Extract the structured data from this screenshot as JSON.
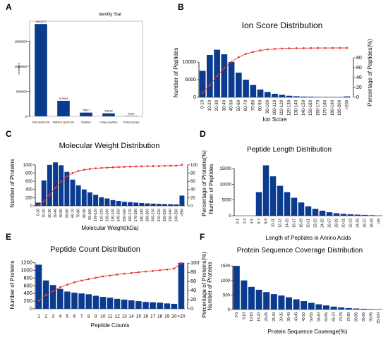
{
  "colors": {
    "bar": "#0b3b8f",
    "cumulative": "#e8322e",
    "axis": "#000000",
    "frame": "#999999"
  },
  "panels": [
    {
      "letter": "A",
      "title": "Identity Stat",
      "type": "bar",
      "ylabel": "Numbers",
      "xlabel": "",
      "categories": [
        "Total spectrums",
        "Matched spectrums",
        "Peptides",
        "Unique peptides",
        "Protein groups"
      ],
      "values": [
        1841377,
        310004,
        75017,
        59818,
        6326
      ],
      "value_labels": [
        "1841377",
        "310004",
        "75017",
        "59818",
        "6326"
      ],
      "ylim": [
        0,
        1900000
      ],
      "yticks": [
        0,
        500000,
        1000000,
        1500000
      ],
      "ytick_labels": [
        "0",
        "500000",
        "1000000",
        "1500000"
      ]
    },
    {
      "letter": "B",
      "title": "Ion Score Distribution",
      "type": "bar+line",
      "ylabel": "Number of Peptides",
      "ylabel2": "Percentage of Peptides(%)",
      "xlabel": "Ion Score",
      "categories": [
        "0-10",
        "10-20",
        "20-30",
        "30-40",
        "40-50",
        "50-60",
        "60-70",
        "70-80",
        "80-90",
        "90-100",
        "100-110",
        "110-120",
        "120-130",
        "130-140",
        "140-150",
        "150-160",
        "160-170",
        "170-180",
        "180-190",
        "190-200",
        ">200"
      ],
      "values": [
        7500,
        12000,
        13500,
        12200,
        10000,
        7000,
        5000,
        3500,
        2200,
        1500,
        1000,
        700,
        450,
        300,
        200,
        150,
        100,
        80,
        60,
        40,
        250
      ],
      "cumulative": [
        9,
        25,
        43,
        59,
        72,
        81,
        88,
        92,
        95,
        97,
        98,
        98.8,
        99.2,
        99.5,
        99.6,
        99.7,
        99.8,
        99.85,
        99.9,
        99.95,
        100
      ],
      "ylim": [
        0,
        14000
      ],
      "yticks": [
        0,
        5000,
        10000
      ],
      "ytick_labels": [
        "0",
        "5000",
        "10000"
      ],
      "ylim2": [
        0,
        100
      ],
      "yticks2": [
        0,
        20,
        40,
        60,
        80
      ],
      "ytick2_labels": [
        "0",
        "20",
        "40",
        "60",
        "80"
      ]
    },
    {
      "letter": "C",
      "title": "Molecular Weight Distribution",
      "type": "bar+line",
      "ylabel": "Number of Proteins",
      "ylabel2": "Percentage of Proteins(%)",
      "xlabel": "Molecular Weight(kDa)",
      "categories": [
        "0-10",
        "10-20",
        "20-30",
        "30-40",
        "40-50",
        "50-60",
        "60-70",
        "70-80",
        "80-90",
        "90-100",
        "100-110",
        "110-120",
        "120-130",
        "130-140",
        "140-150",
        "150-160",
        "160-170",
        "170-180",
        "180-190",
        "190-200",
        "200-210",
        "210-220",
        "220-230",
        "230-240",
        "240-250",
        ">250"
      ],
      "values": [
        80,
        620,
        1000,
        1060,
        990,
        830,
        640,
        500,
        400,
        330,
        270,
        210,
        180,
        140,
        120,
        100,
        90,
        80,
        70,
        60,
        55,
        50,
        45,
        40,
        35,
        250
      ],
      "cumulative": [
        1,
        11,
        27,
        44,
        59,
        72,
        80,
        85,
        88,
        90,
        91.5,
        92.5,
        93.3,
        94,
        94.6,
        95.1,
        95.6,
        96,
        96.4,
        96.7,
        97,
        97.3,
        97.6,
        97.9,
        98.2,
        100
      ],
      "ylim": [
        0,
        1100
      ],
      "yticks": [
        0,
        200,
        400,
        600,
        800,
        1000
      ],
      "ytick_labels": [
        "0",
        "200",
        "400",
        "600",
        "800",
        "1000"
      ],
      "ylim2": [
        0,
        110
      ],
      "yticks2": [
        0,
        20,
        40,
        60,
        80,
        100
      ],
      "ytick2_labels": [
        "0",
        "20",
        "40",
        "60",
        "80",
        "100"
      ]
    },
    {
      "letter": "D",
      "title": "Peptide Length Distribution",
      "type": "bar",
      "ylabel": "Number of Peptides",
      "xlabel": "Length of Peptides in Amino Acids",
      "categories": [
        "0-1",
        "2-3",
        "4-5",
        "6-7",
        "8-9",
        "10-11",
        "12-13",
        "14-15",
        "16-17",
        "18-19",
        "20-21",
        "22-23",
        "24-25",
        "26-27",
        "28-29",
        "30-31",
        "32-33",
        "34-35",
        "36-37",
        "38-39",
        ">39"
      ],
      "values": [
        0,
        0,
        0,
        7500,
        16000,
        12500,
        9500,
        7500,
        5700,
        4200,
        3000,
        2200,
        1600,
        1100,
        800,
        600,
        450,
        350,
        250,
        150,
        50
      ],
      "ylim": [
        0,
        17000
      ],
      "yticks": [
        0,
        5000,
        10000,
        15000
      ],
      "ytick_labels": [
        "0",
        "5000",
        "10000",
        "15000"
      ]
    },
    {
      "letter": "E",
      "title": "Peptide Count Distribution",
      "type": "bar+line",
      "ylabel": "Number of Proteins",
      "ylabel2": "Percentage of Proteins(%)",
      "xlabel": "Peptide Counts",
      "categories": [
        "1",
        "2",
        "3",
        "4",
        "5",
        "6",
        "7",
        "8",
        "9",
        "10",
        "11",
        "12",
        "13",
        "14",
        "15",
        "16",
        "17",
        "18",
        "19",
        "20",
        ">20"
      ],
      "values": [
        1150,
        740,
        620,
        520,
        450,
        420,
        400,
        380,
        340,
        310,
        290,
        260,
        240,
        220,
        200,
        180,
        170,
        160,
        140,
        130,
        1200
      ],
      "cumulative": [
        18,
        30,
        39,
        47,
        53,
        58,
        62,
        65,
        68,
        71,
        73,
        75,
        77,
        78.5,
        80,
        81.5,
        83,
        84.5,
        86,
        88,
        100
      ],
      "ylim": [
        0,
        1250
      ],
      "yticks": [
        0,
        200,
        400,
        600,
        800,
        1000,
        1200
      ],
      "ytick_labels": [
        "0",
        "200",
        "400",
        "600",
        "800",
        "1000",
        "1200"
      ],
      "ylim2": [
        0,
        105
      ],
      "yticks2": [
        0,
        20,
        40,
        60,
        80,
        100
      ],
      "ytick2_labels": [
        "0",
        "20",
        "40",
        "60",
        "80",
        "100"
      ]
    },
    {
      "letter": "F",
      "title": "Protein Sequence Coverage Distribution",
      "type": "bar",
      "ylabel": "Number of Proteins",
      "xlabel": "Protein Sequence Coverage(%)",
      "categories": [
        "0-5",
        "5-10",
        "10-15",
        "15-20",
        "20-25",
        "25-30",
        "30-35",
        "35-40",
        "40-45",
        "45-50",
        "50-55",
        "55-60",
        "60-65",
        "65-70",
        "70-75",
        "75-80",
        "80-85",
        "85-90",
        "90-95",
        "95-100"
      ],
      "values": [
        1500,
        1000,
        780,
        680,
        600,
        530,
        480,
        420,
        350,
        290,
        230,
        180,
        140,
        100,
        70,
        50,
        35,
        25,
        15,
        10
      ],
      "ylim": [
        0,
        1600
      ],
      "yticks": [
        0,
        500,
        1000,
        1500
      ],
      "ytick_labels": [
        "0",
        "500",
        "1000",
        "1500"
      ]
    }
  ]
}
